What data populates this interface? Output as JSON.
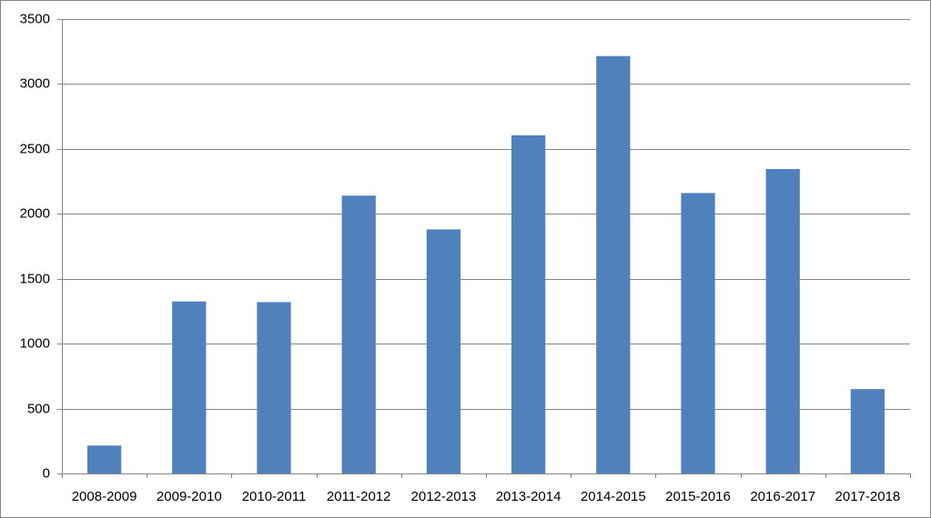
{
  "chart_data": {
    "type": "bar",
    "categories": [
      "2008-2009",
      "2009-2010",
      "2010-2011",
      "2011-2012",
      "2012-2013",
      "2013-2014",
      "2014-2015",
      "2015-2016",
      "2016-2017",
      "2017-2018"
    ],
    "values": [
      215,
      1325,
      1320,
      2140,
      1880,
      2605,
      3215,
      2160,
      2345,
      650
    ],
    "color": "#4f81bd",
    "ylim": [
      0,
      3500
    ],
    "yticks": [
      0,
      500,
      1000,
      1500,
      2000,
      2500,
      3000,
      3500
    ],
    "grid": true
  }
}
